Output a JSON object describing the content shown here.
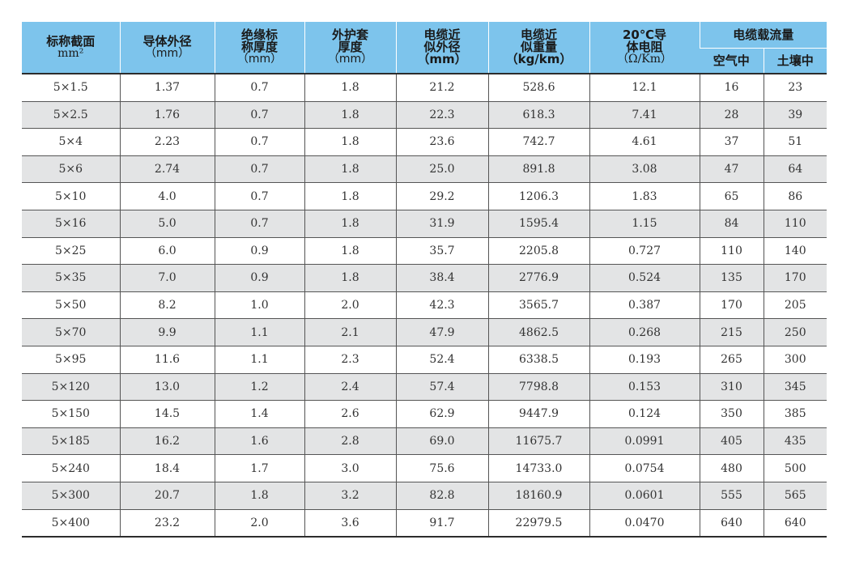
{
  "header": {
    "col0_line1": "标称截面",
    "col0_line2": "mm²",
    "col1_line1": "导体外径",
    "col1_line2": "（mm）",
    "col2_line1": "绝缘标",
    "col2_line2": "称厚度",
    "col2_line3": "（mm）",
    "col3_line1": "外护套",
    "col3_line2": "厚度",
    "col3_line3": "（mm）",
    "col4_line1": "电缆近",
    "col4_line2": "似外径",
    "col4_line3": "（mm）",
    "col5_line1": "电缆近",
    "col5_line2": "似重量",
    "col5_line3": "（kg/km）",
    "col6_line1": "20℃导",
    "col6_line2": "体电阻",
    "col6_line3": "（Ω/Km）",
    "group_label": "电缆载流量",
    "sub_air": "空气中",
    "sub_soil": "土壤中"
  },
  "rows": [
    [
      "5×1.5",
      "1.37",
      "0.7",
      "1.8",
      "21.2",
      "528.6",
      "12.1",
      "16",
      "23"
    ],
    [
      "5×2.5",
      "1.76",
      "0.7",
      "1.8",
      "22.3",
      "618.3",
      "7.41",
      "28",
      "39"
    ],
    [
      "5×4",
      "2.23",
      "0.7",
      "1.8",
      "23.6",
      "742.7",
      "4.61",
      "37",
      "51"
    ],
    [
      "5×6",
      "2.74",
      "0.7",
      "1.8",
      "25.0",
      "891.8",
      "3.08",
      "47",
      "64"
    ],
    [
      "5×10",
      "4.0",
      "0.7",
      "1.8",
      "29.2",
      "1206.3",
      "1.83",
      "65",
      "86"
    ],
    [
      "5×16",
      "5.0",
      "0.7",
      "1.8",
      "31.9",
      "1595.4",
      "1.15",
      "84",
      "110"
    ],
    [
      "5×25",
      "6.0",
      "0.9",
      "1.8",
      "35.7",
      "2205.8",
      "0.727",
      "110",
      "140"
    ],
    [
      "5×35",
      "7.0",
      "0.9",
      "1.8",
      "38.4",
      "2776.9",
      "0.524",
      "135",
      "170"
    ],
    [
      "5×50",
      "8.2",
      "1.0",
      "2.0",
      "42.3",
      "3565.7",
      "0.387",
      "170",
      "205"
    ],
    [
      "5×70",
      "9.9",
      "1.1",
      "2.1",
      "47.9",
      "4862.5",
      "0.268",
      "215",
      "250"
    ],
    [
      "5×95",
      "11.6",
      "1.1",
      "2.3",
      "52.4",
      "6338.5",
      "0.193",
      "265",
      "300"
    ],
    [
      "5×120",
      "13.0",
      "1.2",
      "2.4",
      "57.4",
      "7798.8",
      "0.153",
      "310",
      "345"
    ],
    [
      "5×150",
      "14.5",
      "1.4",
      "2.6",
      "62.9",
      "9447.9",
      "0.124",
      "350",
      "385"
    ],
    [
      "5×185",
      "16.2",
      "1.6",
      "2.8",
      "69.0",
      "11675.7",
      "0.0991",
      "405",
      "435"
    ],
    [
      "5×240",
      "18.4",
      "1.7",
      "3.0",
      "75.6",
      "14733.0",
      "0.0754",
      "480",
      "500"
    ],
    [
      "5×300",
      "20.7",
      "1.8",
      "3.2",
      "82.8",
      "18160.9",
      "0.0601",
      "555",
      "565"
    ],
    [
      "5×400",
      "23.2",
      "2.0",
      "3.6",
      "91.7",
      "22979.5",
      "0.0470",
      "640",
      "640"
    ]
  ],
  "colors": {
    "header_bg": "#7dc4ec",
    "stripe_bg": "#e3e4e5",
    "rule": "#2c2c2c"
  }
}
